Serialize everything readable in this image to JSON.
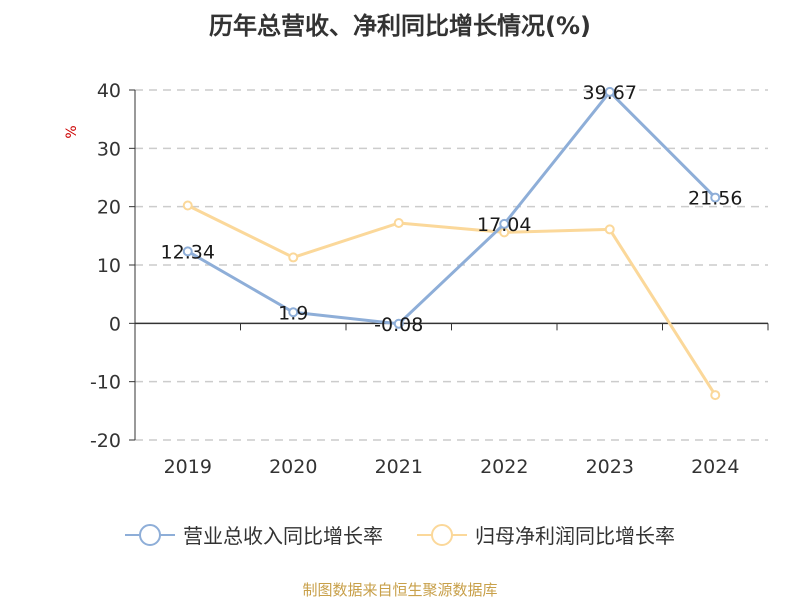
{
  "title": "历年总营收、净利同比增长情况(%)",
  "source": "制图数据来自恒生聚源数据库",
  "colors": {
    "revenue": "#8eaed8",
    "profit": "#fbd89a",
    "unit": "#cc0000",
    "grid": "#cccccc",
    "axis": "#333333"
  },
  "chart_data": {
    "type": "line",
    "title": "历年总营收、净利同比增长情况(%)",
    "xlabel": "",
    "ylabel": "%",
    "categories": [
      "2019",
      "2020",
      "2021",
      "2022",
      "2023",
      "2024"
    ],
    "ylim": [
      -20,
      40
    ],
    "yticks": [
      -20,
      -10,
      0,
      10,
      20,
      30,
      40
    ],
    "grid": true,
    "legend_position": "bottom",
    "series": [
      {
        "name": "营业总收入同比增长率",
        "values": [
          12.34,
          1.9,
          -0.08,
          17.04,
          39.67,
          21.56
        ],
        "labels": [
          "12.34",
          "1.9",
          "-0.08",
          "17.04",
          "39.67",
          "21.56"
        ]
      },
      {
        "name": "归母净利润同比增长率",
        "values": [
          20.2,
          11.3,
          17.2,
          15.6,
          16.1,
          -12.3
        ]
      }
    ]
  }
}
